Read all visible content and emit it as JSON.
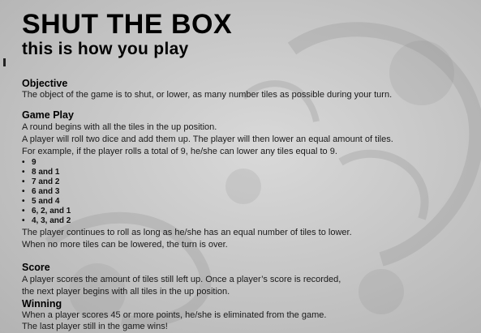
{
  "title": "SHUT THE BOX",
  "subtitle": "this is how you play",
  "objective": {
    "heading": "Objective",
    "text": "The object of the game is to shut, or lower, as many number tiles as possible during your turn."
  },
  "gameplay": {
    "heading": "Game Play",
    "lines": [
      "A round begins with all the tiles in the up position.",
      "A player will roll two dice and add them up. The player will then lower an equal amount of tiles.",
      "For example, if the player rolls a total of 9, he/she can lower any tiles equal to 9."
    ],
    "combos": [
      "9",
      "8 and 1",
      "7 and 2",
      "6 and 3",
      "5 and 4",
      "6, 2, and 1",
      "4, 3, and 2"
    ],
    "after": [
      "The player continues to roll as long as he/she has an equal number of tiles to lower.",
      "When no more tiles can be lowered, the turn is over."
    ]
  },
  "score": {
    "heading": "Score",
    "lines": [
      "A player scores the amount of tiles still left up. Once a player’s score is recorded,",
      "the next player begins with all tiles in the up position."
    ]
  },
  "winning": {
    "heading": "Winning",
    "lines": [
      "When a player scores 45 or more points, he/she is eliminated from the game.",
      "The last player still in the game wins!"
    ]
  },
  "bullet_glyph": "•"
}
